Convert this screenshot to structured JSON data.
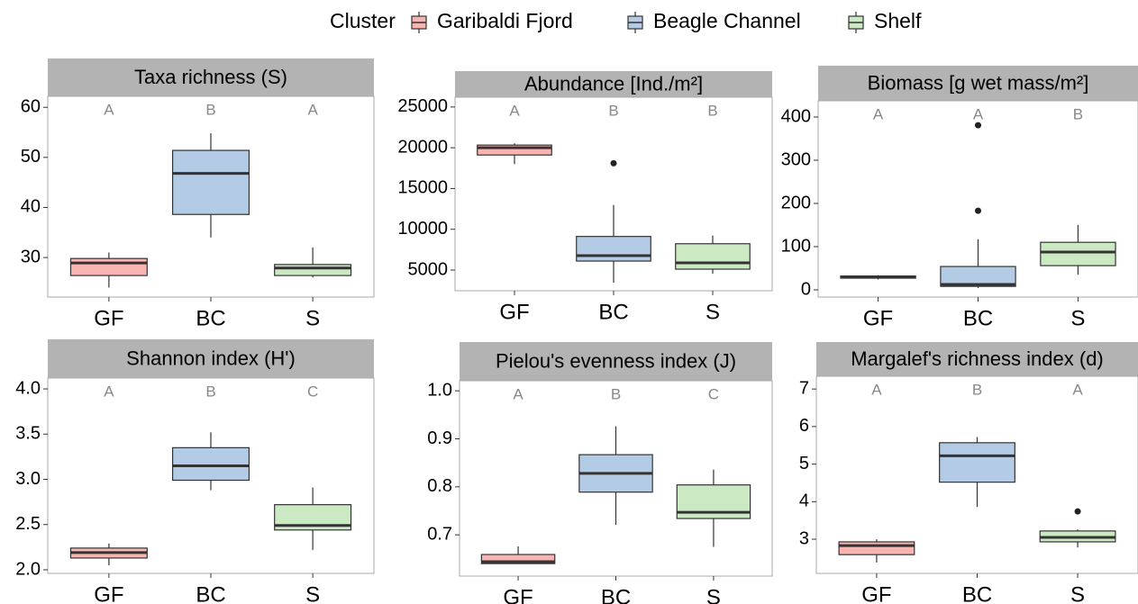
{
  "legend": {
    "title": "Cluster",
    "entries": [
      {
        "name": "Garibaldi Fjord",
        "color": "#f7b4b0"
      },
      {
        "name": "Beagle Channel",
        "color": "#b3cbe4"
      },
      {
        "name": "Shelf",
        "color": "#cbe9c3"
      }
    ]
  },
  "chart_data": [
    {
      "type": "box",
      "title": "Taxa richness (S)",
      "categories": [
        "GF",
        "BC",
        "S"
      ],
      "letters": [
        "A",
        "B",
        "A"
      ],
      "boxes": [
        {
          "min": 24,
          "q1": 26.4,
          "median": 28.9,
          "q3": 29.8,
          "max": 31,
          "outliers": []
        },
        {
          "min": 34,
          "q1": 38.6,
          "median": 46.8,
          "q3": 51.4,
          "max": 54.8,
          "outliers": []
        },
        {
          "min": 26,
          "q1": 26.4,
          "median": 27.9,
          "q3": 28.6,
          "max": 32,
          "outliers": []
        }
      ],
      "ylim": [
        22.1,
        62.2
      ],
      "yticks": [
        30,
        40,
        50,
        60
      ]
    },
    {
      "type": "box",
      "title": "Abundance [Ind./m²]",
      "categories": [
        "GF",
        "BC",
        "S"
      ],
      "letters": [
        "A",
        "B",
        "B"
      ],
      "boxes": [
        {
          "min": 18000,
          "q1": 19110,
          "median": 20000,
          "q3": 20330,
          "max": 20550,
          "outliers": []
        },
        {
          "min": 3450,
          "q1": 6100,
          "median": 6770,
          "q3": 9120,
          "max": 12990,
          "outliers": [
            18100
          ]
        },
        {
          "min": 4560,
          "q1": 5110,
          "median": 5880,
          "q3": 8230,
          "max": 9230,
          "outliers": []
        }
      ],
      "ylim": [
        2460,
        26200
      ],
      "yticks": [
        5000,
        10000,
        15000,
        20000,
        25000
      ]
    },
    {
      "type": "box",
      "title": "Biomass [g wet mass/m²]",
      "categories": [
        "GF",
        "BC",
        "S"
      ],
      "letters": [
        "A",
        "A",
        "B"
      ],
      "boxes": [
        {
          "min": 24,
          "q1": 27,
          "median": 30,
          "q3": 32,
          "max": 34,
          "outliers": []
        },
        {
          "min": 4,
          "q1": 8,
          "median": 12.5,
          "q3": 54,
          "max": 117,
          "outliers": [
            183,
            381
          ]
        },
        {
          "min": 35,
          "q1": 56,
          "median": 87.5,
          "q3": 110,
          "max": 150,
          "outliers": []
        }
      ],
      "ylim": [
        -16.7,
        437.5
      ],
      "yticks": [
        0,
        100,
        200,
        300,
        400
      ]
    },
    {
      "type": "box",
      "title": "Shannon index (H')",
      "categories": [
        "GF",
        "BC",
        "S"
      ],
      "letters": [
        "A",
        "B",
        "C"
      ],
      "boxes": [
        {
          "min": 2.05,
          "q1": 2.13,
          "median": 2.19,
          "q3": 2.24,
          "max": 2.29,
          "outliers": []
        },
        {
          "min": 2.88,
          "q1": 2.99,
          "median": 3.15,
          "q3": 3.35,
          "max": 3.52,
          "outliers": []
        },
        {
          "min": 2.22,
          "q1": 2.44,
          "median": 2.49,
          "q3": 2.72,
          "max": 2.91,
          "outliers": []
        }
      ],
      "ylim": [
        1.96,
        4.12
      ],
      "yticks": [
        {
          "value": 2,
          "label": "2.0"
        },
        2.5,
        {
          "value": 3,
          "label": "3.0"
        },
        3.5,
        {
          "value": 4,
          "label": "4.0"
        }
      ]
    },
    {
      "type": "box",
      "title": "Pielou's evenness index (J)",
      "categories": [
        "GF",
        "BC",
        "S"
      ],
      "letters": [
        "A",
        "B",
        "C"
      ],
      "boxes": [
        {
          "min": 0.64,
          "q1": 0.64,
          "median": 0.644,
          "q3": 0.659,
          "max": 0.676,
          "outliers": []
        },
        {
          "min": 0.721,
          "q1": 0.789,
          "median": 0.828,
          "q3": 0.867,
          "max": 0.926,
          "outliers": []
        },
        {
          "min": 0.675,
          "q1": 0.734,
          "median": 0.747,
          "q3": 0.804,
          "max": 0.836,
          "outliers": []
        }
      ],
      "ylim": [
        0.614,
        1.021
      ],
      "yticks": [
        0.7,
        0.8,
        0.9,
        {
          "value": 1,
          "label": "1.0"
        }
      ]
    },
    {
      "type": "box",
      "title": "Margalef's richness index (d)",
      "categories": [
        "GF",
        "BC",
        "S"
      ],
      "letters": [
        "A",
        "B",
        "A"
      ],
      "boxes": [
        {
          "min": 2.38,
          "q1": 2.59,
          "median": 2.83,
          "q3": 2.93,
          "max": 3.0,
          "outliers": []
        },
        {
          "min": 3.86,
          "q1": 4.52,
          "median": 5.22,
          "q3": 5.57,
          "max": 5.72,
          "outliers": []
        },
        {
          "min": 2.78,
          "q1": 2.93,
          "median": 3.05,
          "q3": 3.22,
          "max": 3.26,
          "outliers": [
            3.74
          ]
        }
      ],
      "ylim": [
        2.09,
        7.34
      ],
      "yticks": [
        3,
        4,
        5,
        6,
        7
      ]
    }
  ]
}
